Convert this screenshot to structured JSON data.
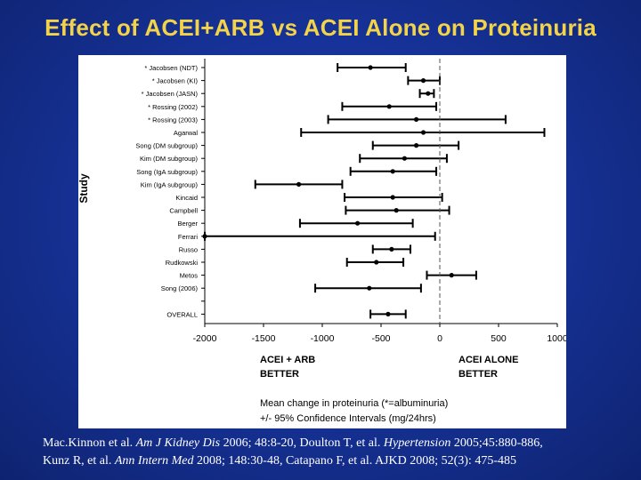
{
  "title": "Effect of ACEI+ARB vs ACEI Alone on Proteinuria",
  "chart_data": {
    "type": "forest",
    "ylabel": "Study",
    "xlim": [
      -2000,
      1000
    ],
    "xticks": [
      -2000,
      -1500,
      -1000,
      -500,
      0,
      500,
      1000
    ],
    "reference_line": 0,
    "left_label": [
      "ACEI + ARB",
      "BETTER"
    ],
    "right_label": [
      "ACEI ALONE",
      "BETTER"
    ],
    "xlabel_lines": [
      "Mean change in proteinuria (*=albuminuria)",
      "+/- 95% Confidence Intervals (mg/24hrs)"
    ],
    "studies": [
      {
        "label": "* Jacobsen (NDT)",
        "mean": -590,
        "low": -870,
        "high": -290
      },
      {
        "label": "* Jacobsen (KI)",
        "mean": -140,
        "low": -270,
        "high": 0
      },
      {
        "label": "* Jacobsen (JASN)",
        "mean": -100,
        "low": -170,
        "high": -50
      },
      {
        "label": "* Rossing (2002)",
        "mean": -430,
        "low": -830,
        "high": -30
      },
      {
        "label": "* Rossing (2003)",
        "mean": -200,
        "low": -950,
        "high": 560
      },
      {
        "label": "Agarwal",
        "mean": -140,
        "low": -1180,
        "high": 890
      },
      {
        "label": "Song (DM subgroup)",
        "mean": -200,
        "low": -570,
        "high": 160
      },
      {
        "label": "Kim (DM subgroup)",
        "mean": -300,
        "low": -680,
        "high": 60
      },
      {
        "label": "Song (IgA subgroup)",
        "mean": -400,
        "low": -760,
        "high": -30
      },
      {
        "label": "Kim (IgA subgroup)",
        "mean": -1200,
        "low": -1570,
        "high": -830
      },
      {
        "label": "Kincaid",
        "mean": -400,
        "low": -810,
        "high": 20
      },
      {
        "label": "Campbell",
        "mean": -370,
        "low": -800,
        "high": 80
      },
      {
        "label": "Berger",
        "mean": -700,
        "low": -1190,
        "high": -230
      },
      {
        "label": "Ferrari",
        "mean": -2000,
        "low": -2000,
        "high": -40
      },
      {
        "label": "Russo",
        "mean": -410,
        "low": -570,
        "high": -250
      },
      {
        "label": "Rudkowski",
        "mean": -540,
        "low": -790,
        "high": -310
      },
      {
        "label": "Metos",
        "mean": 100,
        "low": -110,
        "high": 310
      },
      {
        "label": "Song (2006)",
        "mean": -600,
        "low": -1060,
        "high": -160
      },
      {
        "label": "OVERALL",
        "mean": -440,
        "low": -590,
        "high": -290
      }
    ]
  },
  "citation": {
    "line1": {
      "a": "Mac.Kinnon et al. ",
      "b": "Am J Kidney Dis",
      "c": " 2006; 48:8-20, Doulton T, et al. ",
      "d": "Hypertension",
      "e": " 2005;45:880-886,"
    },
    "line2": {
      "a": "Kunz R, et al. ",
      "b": "Ann Intern Med",
      "c": " 2008; 148:30-48, Catapano F, et al. AJKD 2008; 52(3): 475-485"
    }
  }
}
